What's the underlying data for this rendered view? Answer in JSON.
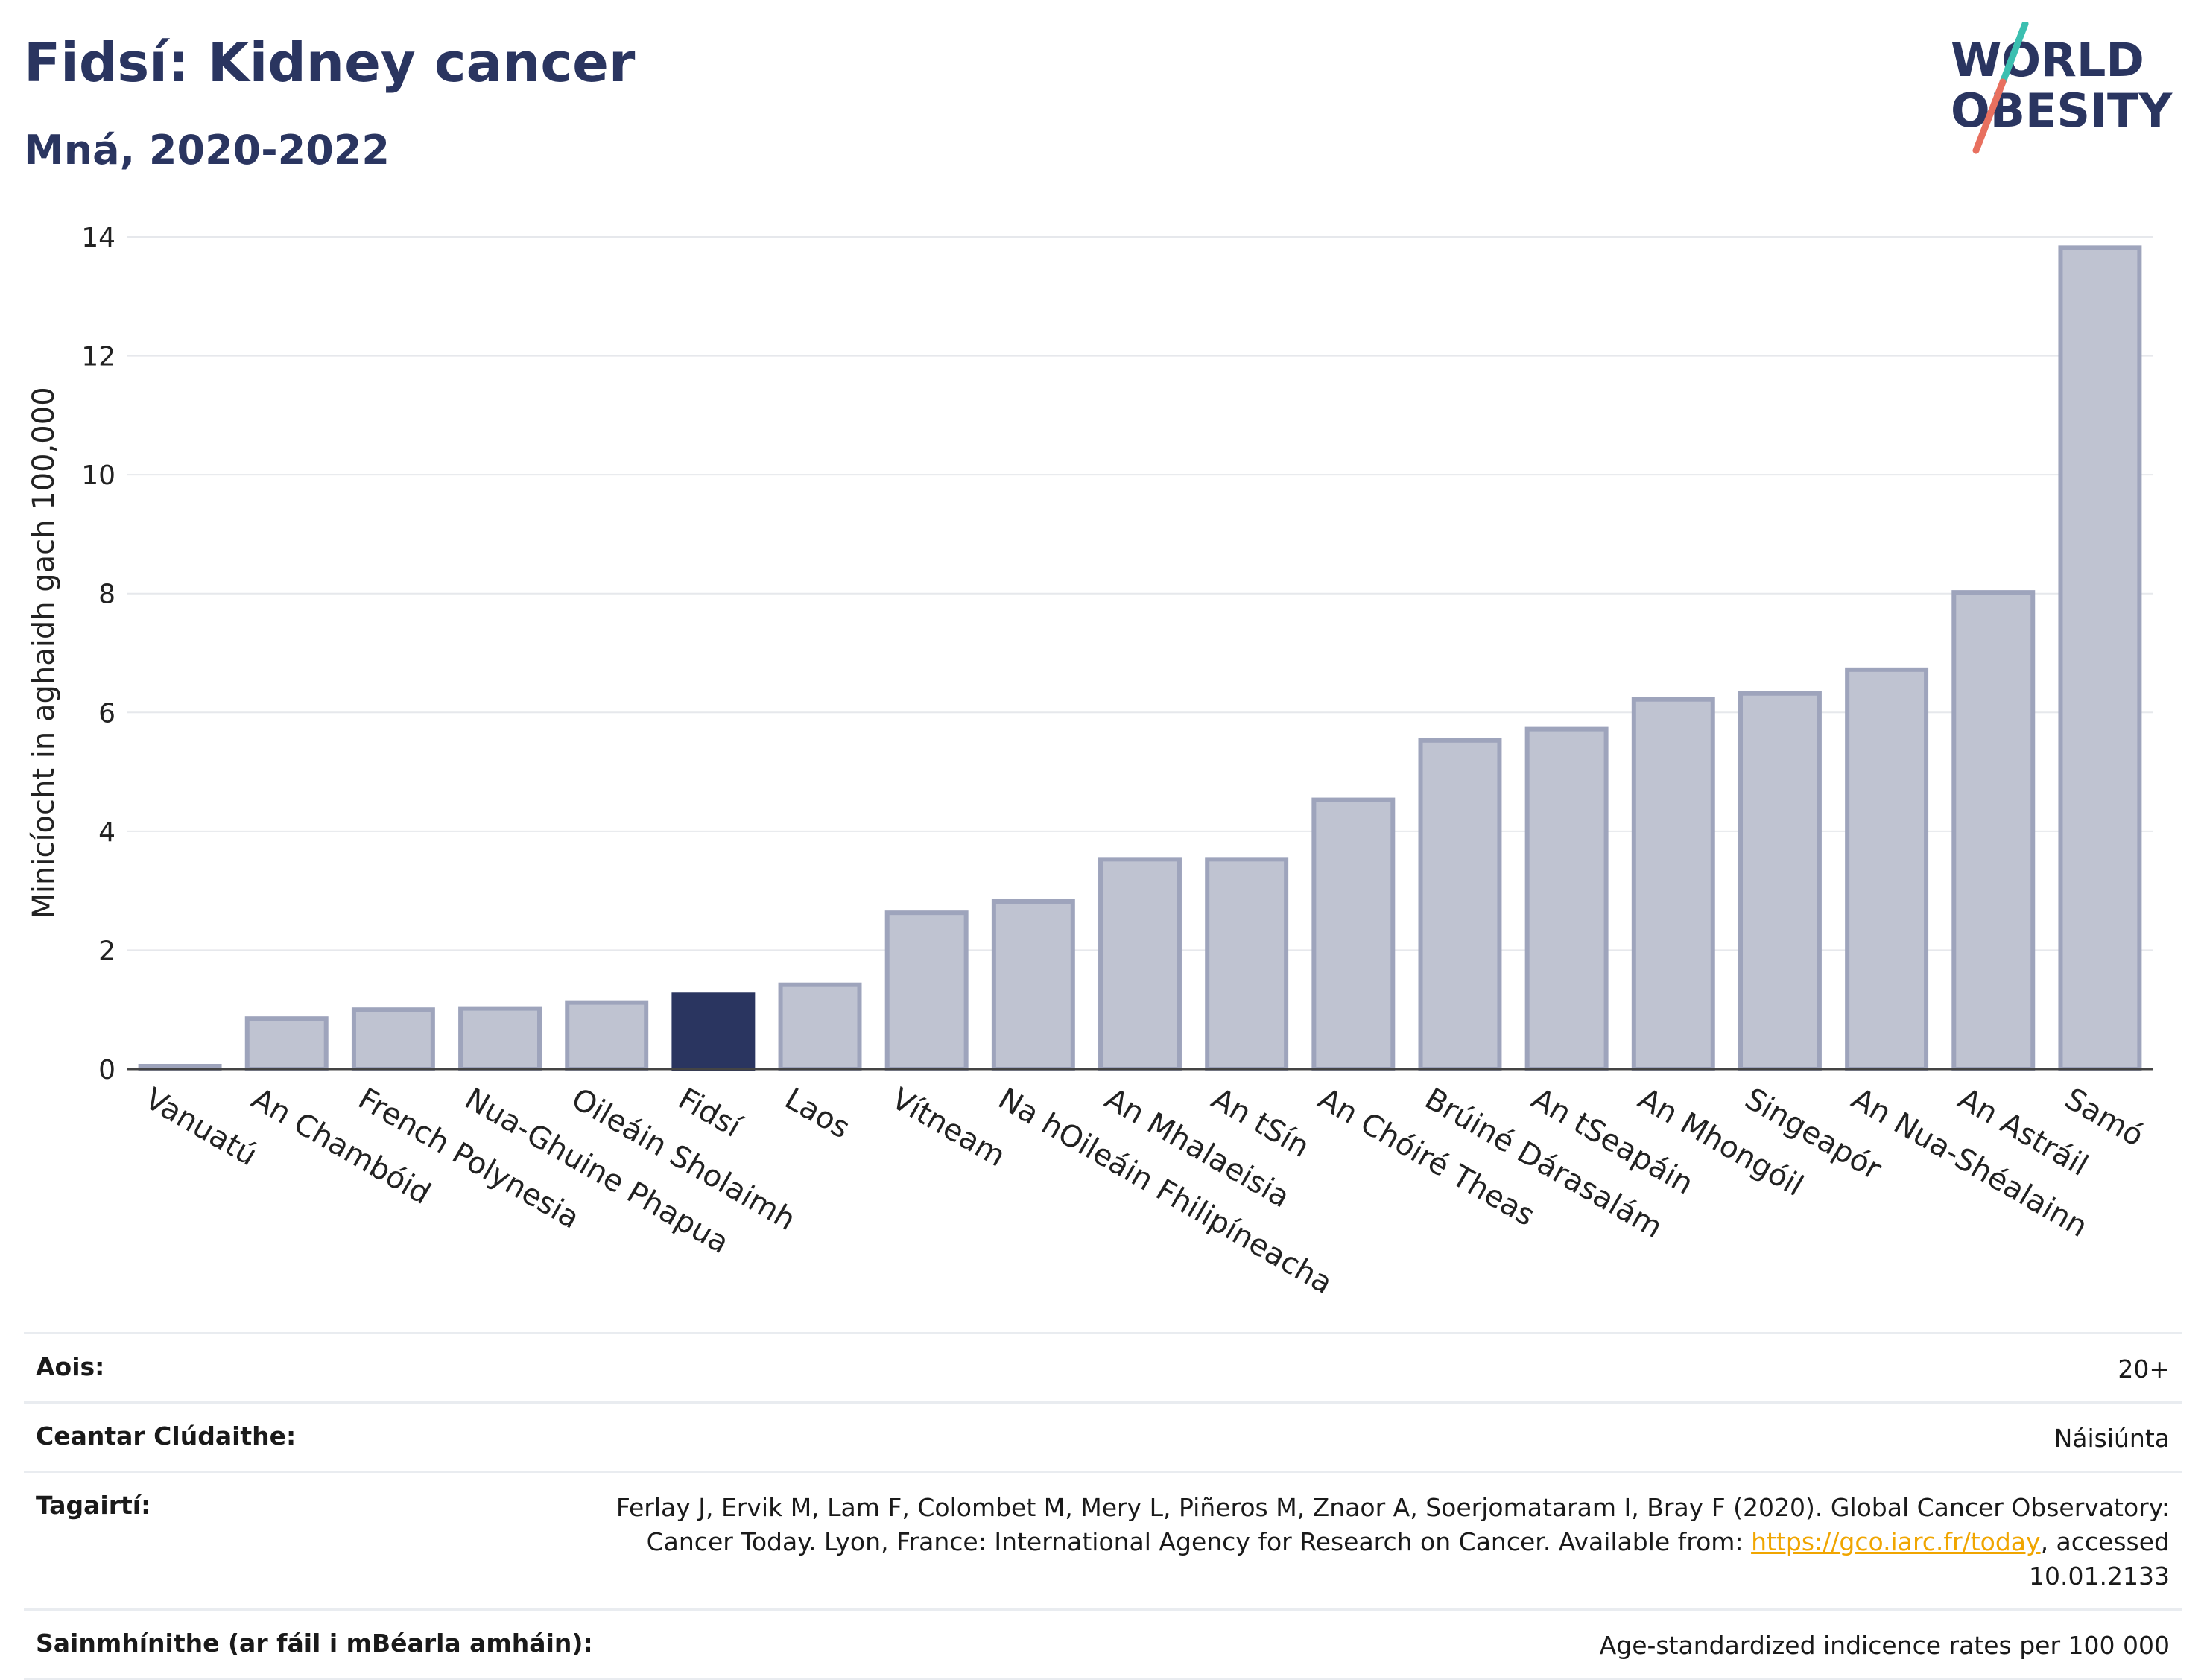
{
  "header": {
    "title": "Fidsí: Kidney cancer",
    "subtitle": "Mná, 2020-2022"
  },
  "logo": {
    "line1": "WORLD",
    "line2": "OBESITY",
    "colors": {
      "text": "#2a3560",
      "slash_top": "#3bbfb0",
      "slash_bottom": "#e8705f"
    }
  },
  "chart_data": {
    "type": "bar",
    "categories": [
      "Vanuatú",
      "An Chambóid",
      "French Polynesia",
      "Nua-Ghuine Phapua",
      "Oileáin Sholaimh",
      "Fidsí",
      "Laos",
      "Vítneam",
      "Na hOileáin Fhilipíneacha",
      "An Mhalaeisia",
      "An tSín",
      "An Chóiré Theas",
      "Brúiné Dárasalám",
      "An tSeapáin",
      "An Mhongóil",
      "Singeapór",
      "An Nua-Shéalainn",
      "An Astráil",
      "Samó"
    ],
    "values": [
      0.05,
      0.85,
      1.0,
      1.02,
      1.12,
      1.25,
      1.42,
      2.63,
      2.82,
      3.53,
      3.53,
      4.53,
      5.53,
      5.72,
      6.22,
      6.32,
      6.72,
      8.02,
      13.82
    ],
    "highlight": "Fidsí",
    "ylabel": "Minicíocht in aghaidh gach 100,000",
    "ylim": [
      0,
      14
    ],
    "yticks": [
      0,
      2,
      4,
      6,
      8,
      10,
      12,
      14
    ],
    "grid": true,
    "colors": {
      "bar": "#bfc3d1",
      "bar_stroke": "#9ea4bc",
      "highlight": "#2a3560",
      "grid": "#e6e8ec"
    }
  },
  "info": {
    "rows": [
      {
        "label": "Aois:",
        "value": "20+"
      },
      {
        "label": "Ceantar Clúdaithe:",
        "value": "Náisiúnta"
      },
      {
        "label": "Tagairtí:",
        "value_pre": "Ferlay J, Ervik M, Lam F, Colombet M, Mery L, Piñeros M, Znaor A, Soerjomataram I, Bray F (2020). Global Cancer Observatory: Cancer Today. Lyon, France: International Agency for Research on Cancer. Available from: ",
        "link": "https://gco.iarc.fr/today",
        "value_post": ", accessed 10.01.2133"
      },
      {
        "label": "Sainmhínithe (ar fáil i mBéarla amháin):",
        "value": "Age-standardized indicence rates per 100 000"
      }
    ]
  }
}
